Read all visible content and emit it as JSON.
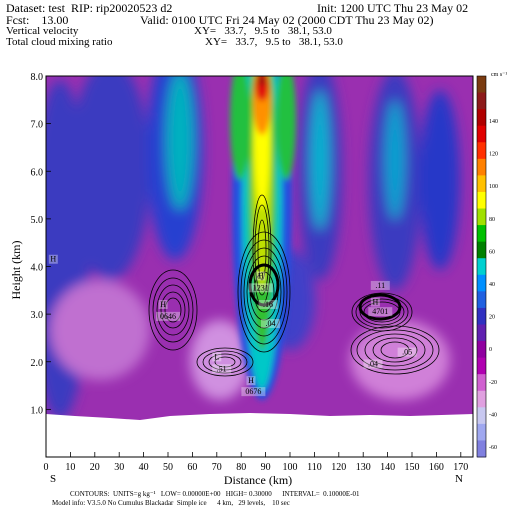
{
  "header": {
    "line1_left": "Dataset: test  RIP: rip20020523 d2",
    "line1_right": "Init: 1200 UTC Thu 23 May 02",
    "line2_left": "Fcst:    13.00",
    "line2_right": "Valid: 0100 UTC Fri 24 May 02 (2000 CDT Thu 23 May 02)",
    "line3_left": "Vertical velocity",
    "line3_right": "XY=   33.7,   9.5 to   38.1, 53.0",
    "line4_left": "Total cloud mixing ratio",
    "line4_right": "XY=   33.7,   9.5 to   38.1, 53.0"
  },
  "footer": {
    "line1": "CONTOURS:  UNITS=g kg⁻¹   LOW= 0.00000E+00   HIGH= 0.30000      INTERVAL=  0.10000E-01",
    "line2": "Model info: V3.5.0 No Cumulus Blackadar  Simple ice      4 km,   29 levels,    10 sec"
  },
  "colorbar": {
    "units": "cm s⁻¹",
    "labels": [
      "140",
      "120",
      "100",
      "80",
      "60",
      "40",
      "20",
      "0",
      "-20",
      "-40",
      "-60"
    ],
    "colors": [
      "#7a3b10",
      "#8c1a1a",
      "#b00000",
      "#e00000",
      "#ff3000",
      "#ff8000",
      "#ffc000",
      "#ffff00",
      "#a0e000",
      "#00c000",
      "#008000",
      "#00d0d0",
      "#0090ff",
      "#2060e0",
      "#3030c0",
      "#6020b0",
      "#9000a0",
      "#b000b0",
      "#d060d0",
      "#e0a0e0",
      "#c8c8f0",
      "#a0a8f0",
      "#8080e0"
    ]
  },
  "chart_data": {
    "type": "heatmap",
    "title": "Vertical velocity",
    "overlay_title": "Total cloud mixing ratio",
    "xlabel": "Distance (km)",
    "ylabel": "Height (km)",
    "xlim": [
      0,
      175
    ],
    "ylim": [
      0,
      8
    ],
    "x_ticks": [
      "0",
      "10",
      "20",
      "30",
      "40",
      "50",
      "60",
      "70",
      "80",
      "90",
      "100",
      "110",
      "120",
      "130",
      "140",
      "150",
      "160",
      "170"
    ],
    "y_ticks": [
      "1.0",
      "2.0",
      "3.0",
      "4.0",
      "5.0",
      "6.0",
      "7.0",
      "8.0"
    ],
    "x_endpoints": [
      "S",
      "N"
    ],
    "terrain_height_km": 0.9,
    "updraft_core_x_km": 89,
    "labels": [
      {
        "text": "H",
        "x": 3,
        "y": 4.1
      },
      {
        "text": "H",
        "x": 48,
        "y": 3.15
      },
      {
        "text": "0646",
        "x": 50,
        "y": 2.9
      },
      {
        "text": "L",
        "x": 70,
        "y": 2.05
      },
      {
        "text": ".51",
        "x": 72,
        "y": 1.8
      },
      {
        "text": "H",
        "x": 84,
        "y": 1.55
      },
      {
        "text": "0676",
        "x": 85,
        "y": 1.32
      },
      {
        "text": "H",
        "x": 88,
        "y": 3.75
      },
      {
        "text": "1231",
        "x": 88,
        "y": 3.5
      },
      {
        "text": ".16",
        "x": 91,
        "y": 3.15
      },
      {
        "text": ".04",
        "x": 92,
        "y": 2.75
      },
      {
        "text": ".11",
        "x": 137,
        "y": 3.55
      },
      {
        "text": "H",
        "x": 135,
        "y": 3.2
      },
      {
        "text": "4701",
        "x": 137,
        "y": 3.0
      },
      {
        "text": ".05",
        "x": 148,
        "y": 2.15
      },
      {
        "text": ".04",
        "x": 134,
        "y": 1.9
      }
    ]
  }
}
